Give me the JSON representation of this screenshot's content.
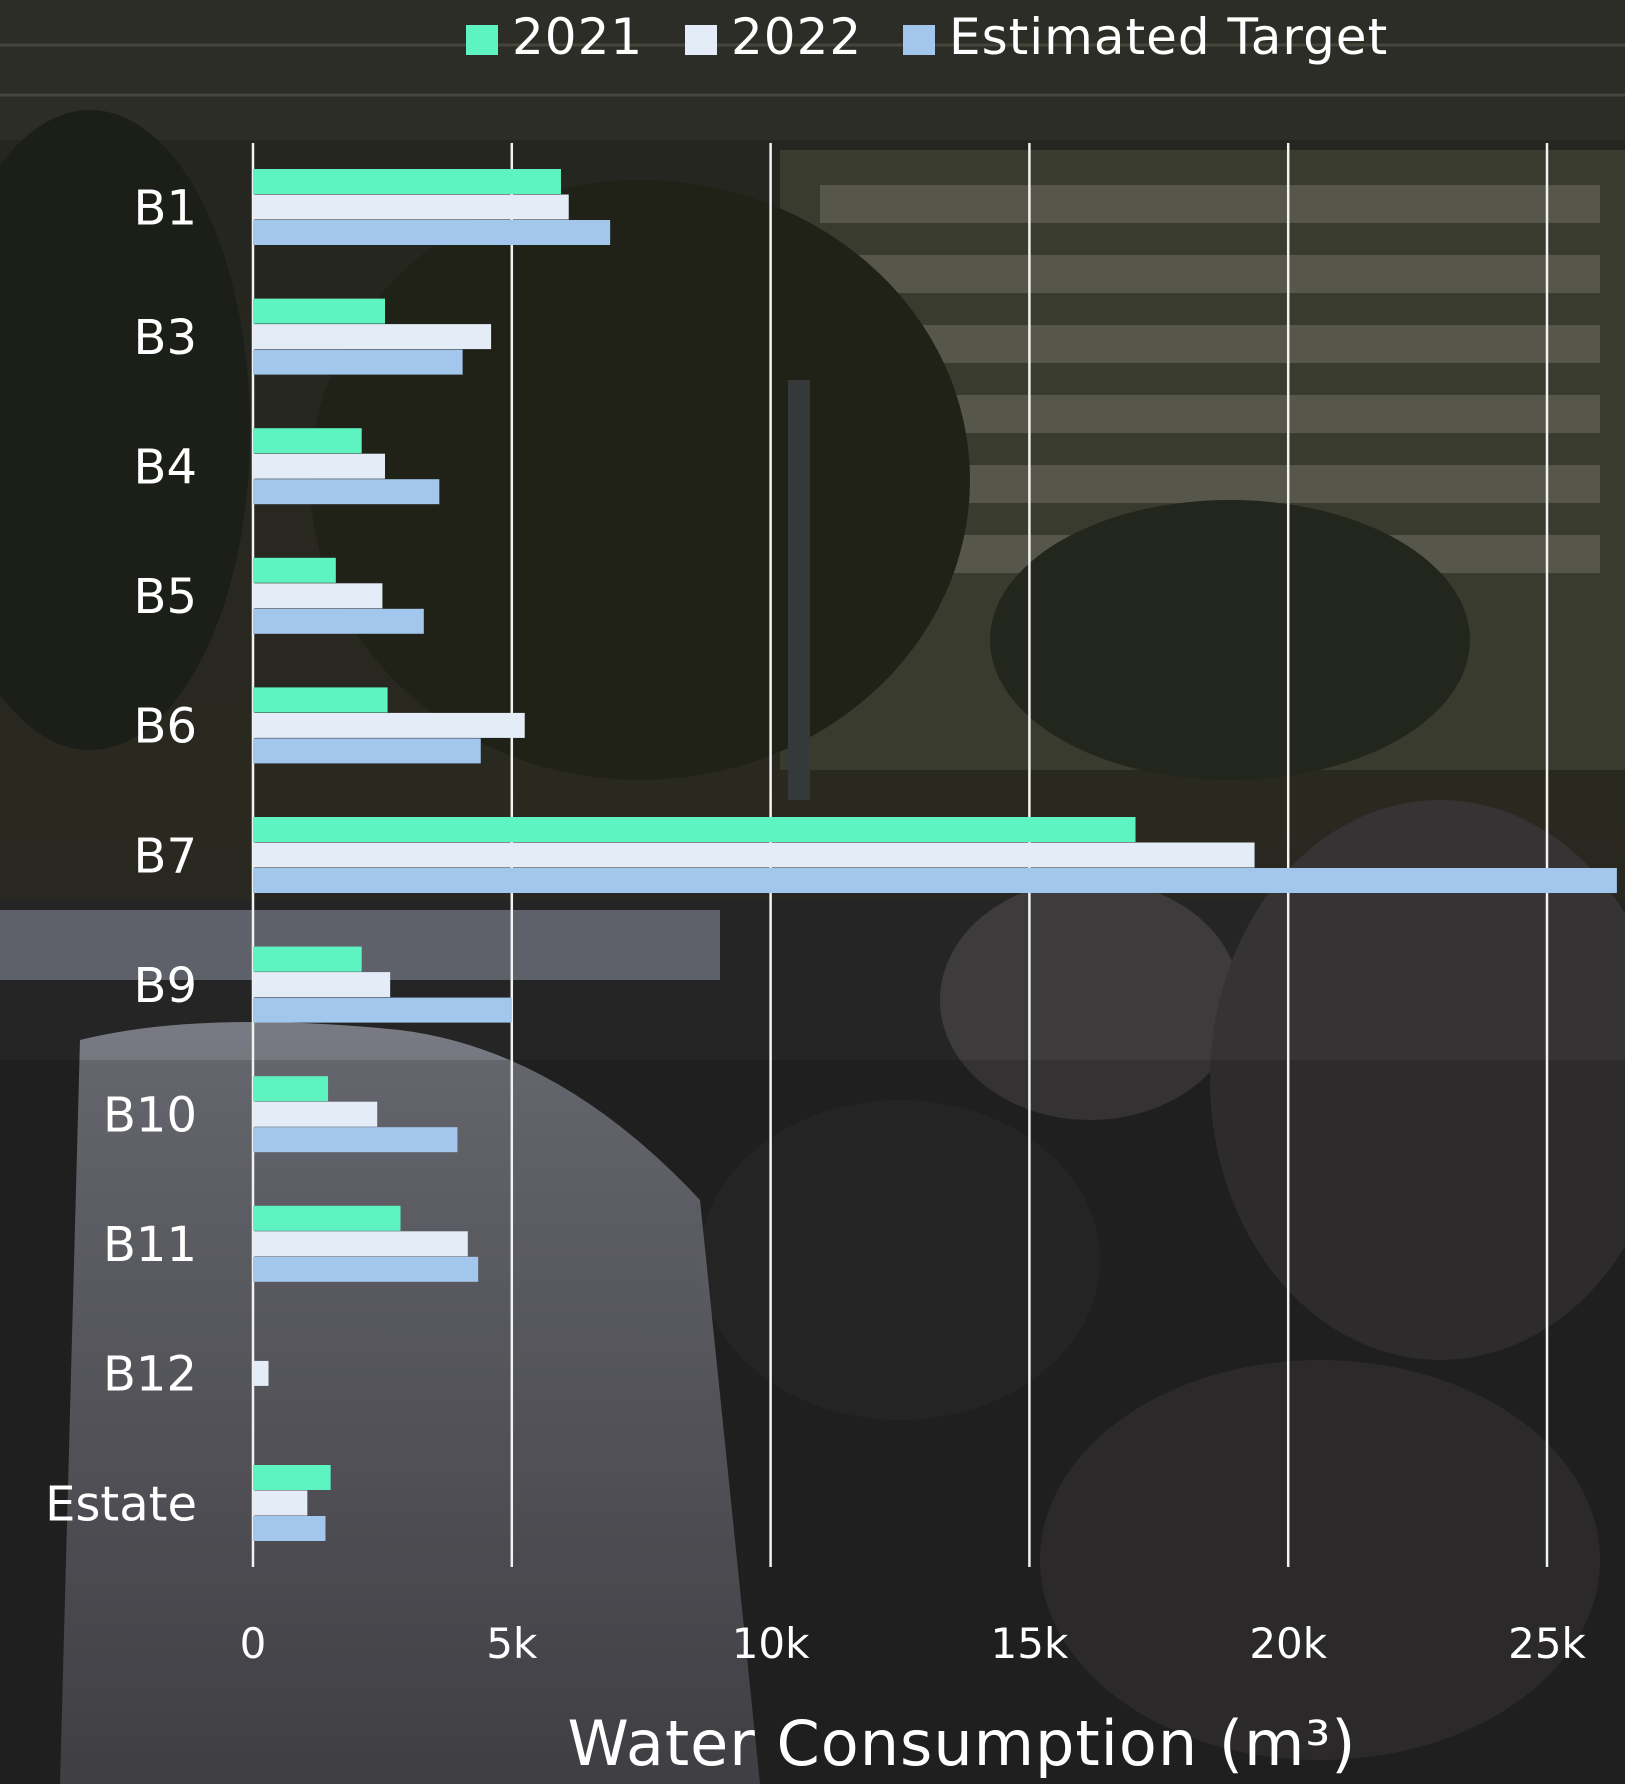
{
  "chart_data": {
    "type": "bar",
    "orientation": "horizontal",
    "categories": [
      "B1",
      "B3",
      "B4",
      "B5",
      "B6",
      "B7",
      "B9",
      "B10",
      "B11",
      "B12",
      "Estate"
    ],
    "series": [
      {
        "name": "2021",
        "color": "#5ef4c2",
        "values": [
          5950,
          2550,
          2100,
          1600,
          2600,
          17050,
          2100,
          1450,
          2850,
          0,
          1500
        ]
      },
      {
        "name": "2022",
        "color": "#e4ecf7",
        "values": [
          6100,
          4600,
          2550,
          2500,
          5250,
          19350,
          2650,
          2400,
          4150,
          300,
          1050
        ]
      },
      {
        "name": "Estimated Target",
        "color": "#a3c6ec",
        "values": [
          6900,
          4050,
          3600,
          3300,
          4400,
          26350,
          5000,
          3950,
          4350,
          0,
          1400
        ]
      }
    ],
    "xlabel": "Water Consumption (m³)",
    "xlim": [
      0,
      26400
    ],
    "x_ticks": [
      0,
      5000,
      10000,
      15000,
      20000,
      25000
    ],
    "x_tick_labels": [
      "0",
      "5k",
      "10k",
      "15k",
      "20k",
      "25k"
    ],
    "grid": "vertical",
    "legend_position": "top"
  }
}
